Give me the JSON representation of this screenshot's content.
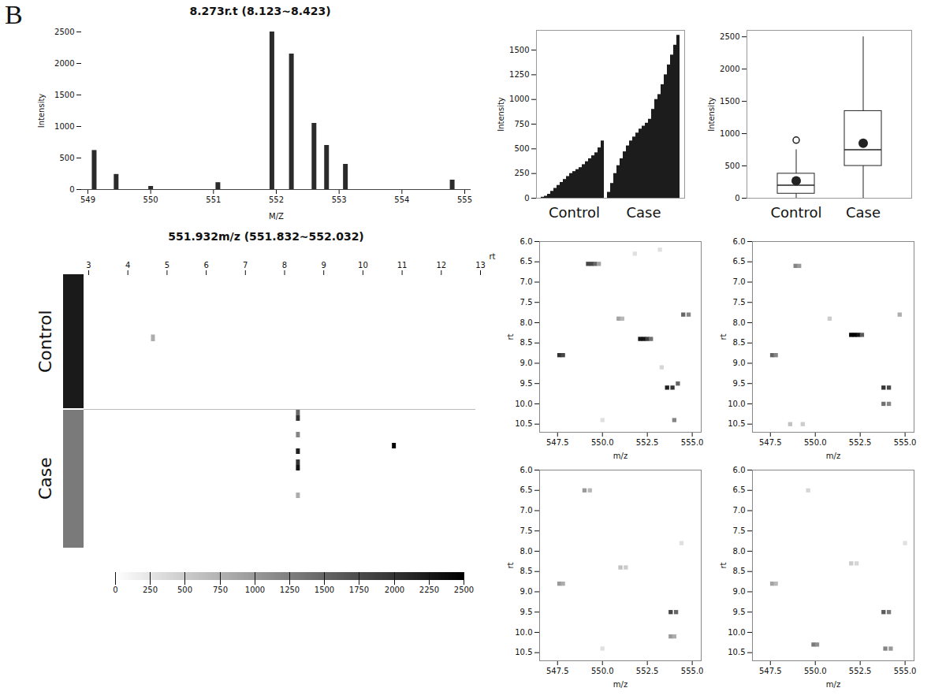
{
  "panel_label": "B",
  "chart_data": [
    {
      "type": "spectrum",
      "title": "8.273r.t (8.123~8.423)",
      "xlabel": "M/Z",
      "ylabel": "Intensity",
      "x": [
        549.1,
        549.45,
        550.0,
        551.07,
        551.93,
        552.24,
        552.6,
        552.8,
        553.1,
        554.8
      ],
      "values": [
        620,
        240,
        50,
        110,
        2500,
        2150,
        1050,
        700,
        400,
        150
      ],
      "color": "#2b2b2b",
      "xlim": [
        548.9,
        555.1
      ],
      "ylim": [
        0,
        2500
      ],
      "xticks": [
        549,
        550,
        551,
        552,
        553,
        554,
        555
      ],
      "yticks": [
        0,
        500,
        1000,
        1500,
        2000,
        2500
      ]
    },
    {
      "type": "bar",
      "ylabel": "Intensity",
      "series": [
        {
          "name": "Control",
          "color": "#1c1c1c",
          "values": [
            10,
            20,
            40,
            70,
            100,
            130,
            160,
            190,
            220,
            250,
            270,
            290,
            310,
            340,
            370,
            400,
            430,
            460,
            510,
            580
          ]
        },
        {
          "name": "Case",
          "color": "#1c1c1c",
          "values": [
            60,
            150,
            250,
            330,
            400,
            470,
            530,
            580,
            620,
            660,
            700,
            730,
            760,
            800,
            900,
            1000,
            1050,
            1150,
            1250,
            1350,
            1450,
            1550,
            1650
          ]
        }
      ],
      "ylim": [
        0,
        1700
      ],
      "yticks": [
        0,
        250,
        500,
        750,
        1000,
        1250,
        1500
      ]
    },
    {
      "type": "box",
      "ylabel": "Intensity",
      "boxes": [
        {
          "name": "Control",
          "min": 0,
          "q1": 70,
          "median": 200,
          "q3": 380,
          "max": 750,
          "mean": 270,
          "outliers": [
            900
          ]
        },
        {
          "name": "Case",
          "min": 0,
          "q1": 500,
          "median": 750,
          "q3": 1350,
          "max": 2500,
          "mean": 850,
          "outliers": []
        }
      ],
      "color": "#222222",
      "ylim": [
        0,
        2600
      ],
      "yticks": [
        0,
        500,
        1000,
        1500,
        2000,
        2500
      ]
    },
    {
      "type": "heatmap",
      "title": "551.932m/z (551.832~552.032)",
      "xlabel": "rt",
      "xlim": [
        3,
        13
      ],
      "xticks": [
        3,
        4,
        5,
        6,
        7,
        8,
        9,
        10,
        11,
        12,
        13
      ],
      "cell_width": 0.1,
      "groups": [
        {
          "name": "Control",
          "color": "#1a1a1a",
          "rows": 20,
          "cells": [
            [
              4.6,
              9,
              800
            ]
          ]
        },
        {
          "name": "Case",
          "color": "#7a7a7a",
          "rows": 25,
          "cells": [
            [
              8.3,
              0,
              1500
            ],
            [
              8.3,
              1,
              2000
            ],
            [
              8.3,
              4,
              1200
            ],
            [
              8.3,
              7,
              2200
            ],
            [
              8.3,
              9,
              2000
            ],
            [
              8.3,
              10,
              2300
            ],
            [
              8.3,
              15,
              800
            ],
            [
              10.75,
              6,
              2500
            ]
          ]
        }
      ],
      "colorbar": {
        "range": [
          0,
          2500
        ],
        "ticks": [
          0,
          250,
          500,
          750,
          1000,
          1250,
          1500,
          1750,
          2000,
          2250,
          2500
        ]
      }
    },
    {
      "type": "scatter",
      "xlabel": "m/z",
      "ylabel": "rt",
      "points": [
        [
          549.2,
          6.55,
          1800
        ],
        [
          549.4,
          6.55,
          1800
        ],
        [
          549.6,
          6.55,
          1500
        ],
        [
          549.8,
          6.55,
          900
        ],
        [
          550.9,
          7.9,
          900
        ],
        [
          551.1,
          7.9,
          700
        ],
        [
          552.1,
          8.4,
          2300
        ],
        [
          552.3,
          8.4,
          2300
        ],
        [
          552.5,
          8.4,
          1900
        ],
        [
          552.7,
          8.4,
          1400
        ],
        [
          554.5,
          7.8,
          1500
        ],
        [
          554.8,
          7.8,
          1200
        ],
        [
          547.6,
          8.8,
          2000
        ],
        [
          547.8,
          8.8,
          1800
        ],
        [
          553.6,
          9.6,
          2200
        ],
        [
          553.9,
          9.6,
          2000
        ],
        [
          554.2,
          9.5,
          1500
        ],
        [
          554.0,
          10.4,
          1200
        ],
        [
          550.0,
          10.4,
          300
        ],
        [
          551.8,
          6.3,
          300
        ],
        [
          553.2,
          6.2,
          300
        ],
        [
          553.3,
          9.1,
          400
        ]
      ],
      "xlim": [
        546.5,
        555.5
      ],
      "ylim": [
        6,
        10.7
      ],
      "xticks": [
        547.5,
        {
          "value": 550,
          "label": "550.0"
        },
        552.5,
        {
          "value": 555,
          "label": "555.0"
        }
      ],
      "yticks": [
        {
          "value": 6,
          "label": "6.0"
        },
        6.5,
        {
          "value": 7,
          "label": "7.0"
        },
        7.5,
        {
          "value": 8,
          "label": "8.0"
        },
        8.5,
        {
          "value": 9,
          "label": "9.0"
        },
        9.5,
        {
          "value": 10,
          "label": "10.0"
        },
        10.5
      ]
    },
    {
      "type": "scatter",
      "xlabel": "m/z",
      "ylabel": "rt",
      "points": [
        [
          548.9,
          6.6,
          1200
        ],
        [
          549.1,
          6.6,
          1000
        ],
        [
          547.6,
          8.8,
          1500
        ],
        [
          547.8,
          8.8,
          1200
        ],
        [
          550.8,
          7.9,
          500
        ],
        [
          552.0,
          8.3,
          2500
        ],
        [
          552.2,
          8.3,
          2500
        ],
        [
          552.4,
          8.3,
          2300
        ],
        [
          552.6,
          8.3,
          1600
        ],
        [
          554.7,
          7.8,
          800
        ],
        [
          553.8,
          9.6,
          2000
        ],
        [
          554.1,
          9.6,
          1800
        ],
        [
          553.8,
          10.0,
          1400
        ],
        [
          554.1,
          10.0,
          1200
        ],
        [
          548.6,
          10.5,
          600
        ],
        [
          549.3,
          10.5,
          500
        ]
      ],
      "xlim": [
        546.5,
        555.5
      ],
      "ylim": [
        6,
        10.7
      ],
      "xticks": [
        547.5,
        {
          "value": 550,
          "label": "550.0"
        },
        552.5,
        {
          "value": 555,
          "label": "555.0"
        }
      ],
      "yticks": [
        {
          "value": 6,
          "label": "6.0"
        },
        6.5,
        {
          "value": 7,
          "label": "7.0"
        },
        7.5,
        {
          "value": 8,
          "label": "8.0"
        },
        8.5,
        {
          "value": 9,
          "label": "9.0"
        },
        9.5,
        {
          "value": 10,
          "label": "10.0"
        },
        10.5
      ]
    },
    {
      "type": "scatter",
      "xlabel": "m/z",
      "ylabel": "rt",
      "points": [
        [
          549.0,
          6.5,
          1000
        ],
        [
          549.3,
          6.5,
          700
        ],
        [
          547.6,
          8.8,
          1000
        ],
        [
          547.8,
          8.8,
          800
        ],
        [
          551.0,
          8.4,
          600
        ],
        [
          551.3,
          8.4,
          500
        ],
        [
          553.8,
          9.5,
          1800
        ],
        [
          554.1,
          9.5,
          1500
        ],
        [
          553.8,
          10.1,
          1000
        ],
        [
          554.0,
          10.1,
          800
        ],
        [
          550.0,
          10.4,
          300
        ],
        [
          554.4,
          7.8,
          300
        ]
      ],
      "xlim": [
        546.5,
        555.5
      ],
      "ylim": [
        6,
        10.7
      ],
      "xticks": [
        547.5,
        {
          "value": 550,
          "label": "550.0"
        },
        552.5,
        {
          "value": 555,
          "label": "555.0"
        }
      ],
      "yticks": [
        {
          "value": 6,
          "label": "6.0"
        },
        6.5,
        {
          "value": 7,
          "label": "7.0"
        },
        7.5,
        {
          "value": 8,
          "label": "8.0"
        },
        8.5,
        {
          "value": 9,
          "label": "9.0"
        },
        9.5,
        {
          "value": 10,
          "label": "10.0"
        },
        10.5
      ]
    },
    {
      "type": "scatter",
      "xlabel": "m/z",
      "ylabel": "rt",
      "points": [
        [
          549.6,
          6.5,
          400
        ],
        [
          547.6,
          8.8,
          900
        ],
        [
          547.8,
          8.8,
          700
        ],
        [
          552.0,
          8.3,
          500
        ],
        [
          552.3,
          8.3,
          400
        ],
        [
          553.8,
          9.5,
          1600
        ],
        [
          554.1,
          9.5,
          1300
        ],
        [
          549.9,
          10.3,
          1300
        ],
        [
          550.1,
          10.3,
          1100
        ],
        [
          553.9,
          10.4,
          1200
        ],
        [
          554.2,
          10.4,
          1000
        ],
        [
          555.0,
          7.8,
          300
        ]
      ],
      "xlim": [
        546.5,
        555.5
      ],
      "ylim": [
        6,
        10.7
      ],
      "xticks": [
        547.5,
        {
          "value": 550,
          "label": "550.0"
        },
        552.5,
        {
          "value": 555,
          "label": "555.0"
        }
      ],
      "yticks": [
        {
          "value": 6,
          "label": "6.0"
        },
        6.5,
        {
          "value": 7,
          "label": "7.0"
        },
        7.5,
        {
          "value": 8,
          "label": "8.0"
        },
        8.5,
        {
          "value": 9,
          "label": "9.0"
        },
        9.5,
        {
          "value": 10,
          "label": "10.0"
        },
        10.5
      ]
    }
  ]
}
